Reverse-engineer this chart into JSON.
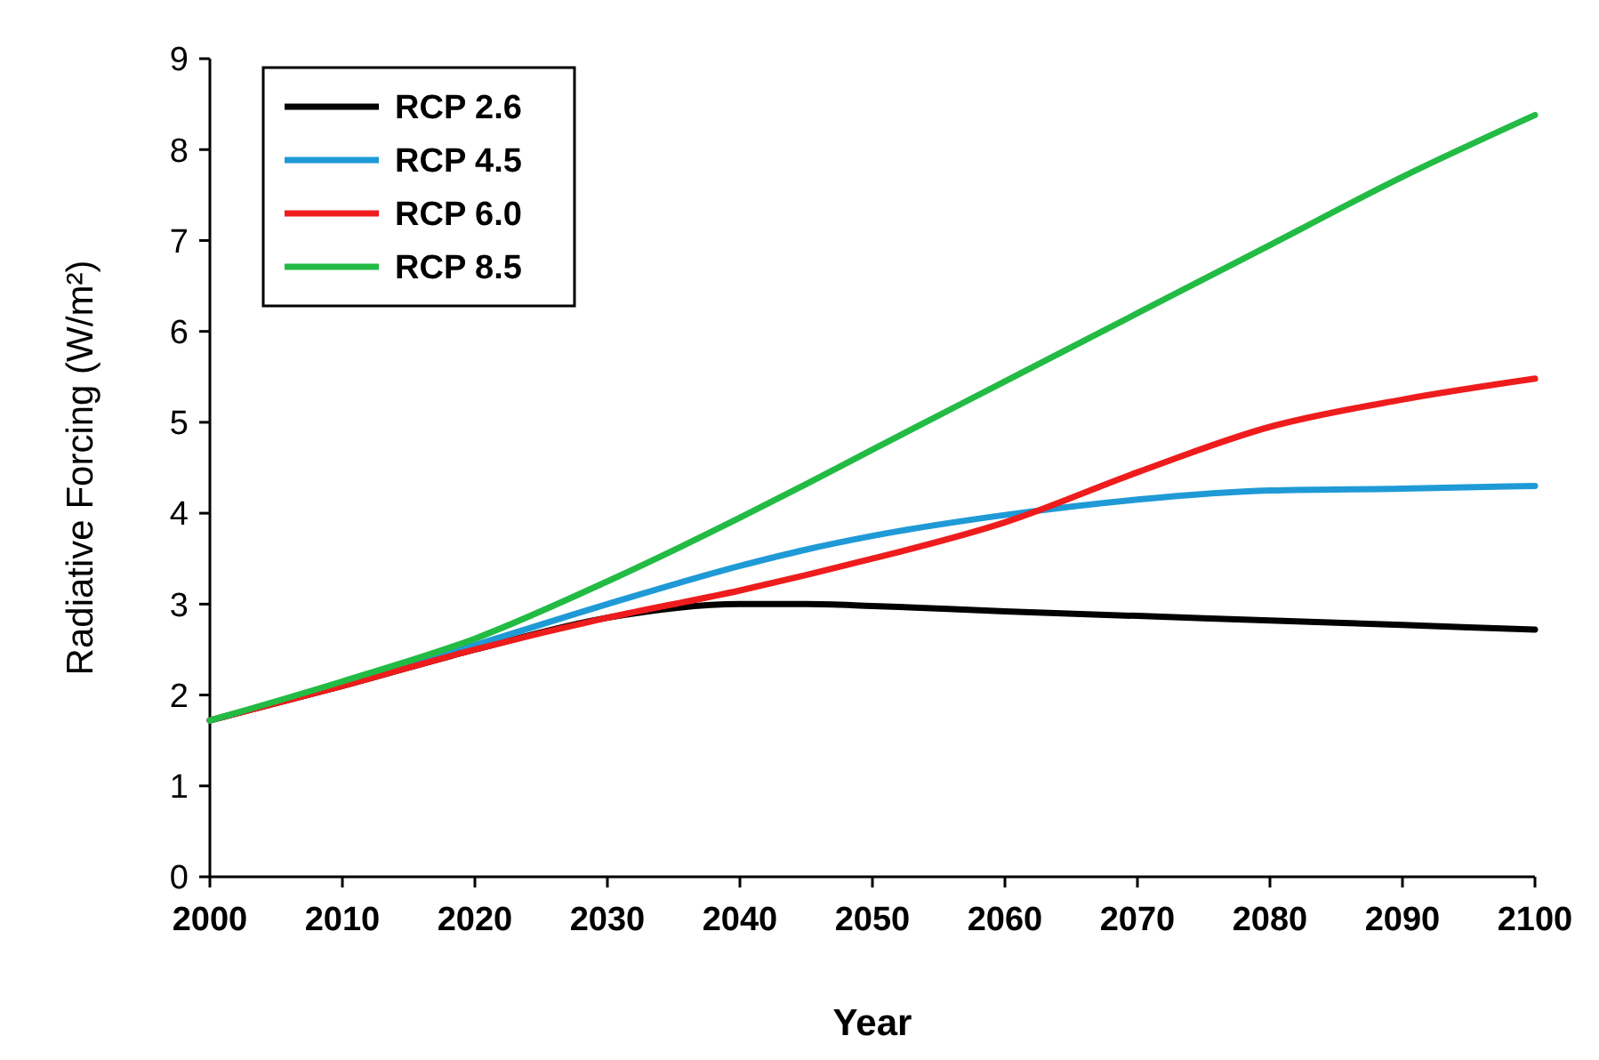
{
  "chart_data": {
    "type": "line",
    "xlabel": "Year",
    "ylabel": "Radiative Forcing (W/m²)",
    "x": [
      2000,
      2010,
      2020,
      2030,
      2040,
      2045,
      2050,
      2060,
      2070,
      2080,
      2090,
      2100
    ],
    "xlim": [
      2000,
      2100
    ],
    "xticks": [
      2000,
      2010,
      2020,
      2030,
      2040,
      2050,
      2060,
      2070,
      2080,
      2090,
      2100
    ],
    "ylim": [
      0,
      9
    ],
    "yticks": [
      0,
      1,
      2,
      3,
      4,
      5,
      6,
      7,
      8,
      9
    ],
    "legend": "top left",
    "grid": false,
    "marker": "none",
    "line_style": "solid",
    "series": [
      {
        "name": "RCP 2.6",
        "color": "#000000",
        "values": [
          1.72,
          2.1,
          2.5,
          2.85,
          3.0,
          3.0,
          2.98,
          2.92,
          2.87,
          2.82,
          2.77,
          2.72
        ]
      },
      {
        "name": "RCP 4.5",
        "color": "#1f9ad6",
        "values": [
          1.72,
          2.12,
          2.55,
          3.0,
          3.42,
          3.6,
          3.75,
          3.98,
          4.15,
          4.25,
          4.27,
          4.3
        ]
      },
      {
        "name": "RCP 6.0",
        "color": "#ee1c1c",
        "values": [
          1.72,
          2.1,
          2.5,
          2.85,
          3.15,
          3.32,
          3.5,
          3.9,
          4.45,
          4.95,
          5.25,
          5.48
        ]
      },
      {
        "name": "RCP 8.5",
        "color": "#22bb44",
        "values": [
          1.72,
          2.15,
          2.62,
          3.25,
          3.95,
          4.32,
          4.7,
          5.45,
          6.2,
          6.95,
          7.7,
          8.38
        ]
      }
    ]
  }
}
